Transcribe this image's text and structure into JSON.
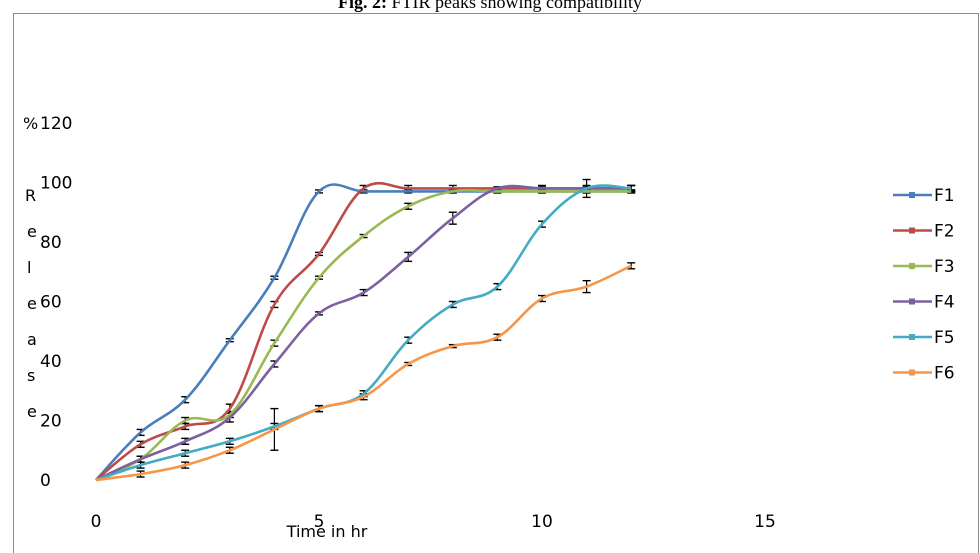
{
  "caption": {
    "prefix": "Fig. 2:",
    "text": " FTIR peaks showing compatibility"
  },
  "chart_data": {
    "type": "line",
    "xlabel": "Time in hr",
    "ylabel_letters": [
      "%",
      "R",
      "e",
      "l",
      "e",
      "a",
      "s",
      "e"
    ],
    "xlim": [
      0,
      15
    ],
    "ylim": [
      0,
      120
    ],
    "xticks": [
      0,
      5,
      10,
      15
    ],
    "yticks": [
      0,
      20,
      40,
      60,
      80,
      100,
      120
    ],
    "grid": false,
    "legend_position": "right",
    "x": [
      0,
      1,
      2,
      3,
      4,
      5,
      6,
      7,
      8,
      9,
      10,
      11,
      12
    ],
    "series": [
      {
        "name": "F1",
        "color": "#4a7ebb",
        "values": [
          0,
          16,
          27,
          47,
          68,
          97,
          97,
          97,
          97,
          97,
          97,
          97,
          97
        ],
        "errors": [
          0,
          1,
          1,
          0.5,
          0.5,
          0.5,
          0.5,
          0.5,
          0.5,
          0.5,
          0.5,
          0.5,
          0.5
        ]
      },
      {
        "name": "F2",
        "color": "#be4b48",
        "values": [
          0,
          12,
          18,
          24,
          59,
          76,
          98,
          98,
          98,
          98,
          98,
          98,
          98
        ],
        "errors": [
          0,
          1,
          1,
          1.5,
          1,
          0.5,
          1,
          1,
          1,
          0.5,
          0.5,
          0.5,
          1
        ]
      },
      {
        "name": "F3",
        "color": "#98b954",
        "values": [
          0,
          7,
          20,
          22,
          46,
          68,
          82,
          92,
          97,
          97,
          97,
          97,
          97
        ],
        "errors": [
          0,
          1,
          1,
          1,
          1,
          0.5,
          0.5,
          1,
          0.5,
          0.5,
          0.5,
          0.5,
          0.5
        ]
      },
      {
        "name": "F4",
        "color": "#7d60a0",
        "values": [
          0,
          7,
          13,
          21,
          39,
          56,
          63,
          75,
          88,
          98,
          98,
          98,
          98
        ],
        "errors": [
          0,
          1,
          1,
          1.5,
          1,
          0.5,
          1,
          1.5,
          2,
          0.5,
          1,
          1,
          1
        ]
      },
      {
        "name": "F5",
        "color": "#46aac5",
        "values": [
          0,
          5,
          9,
          13,
          18,
          24,
          29,
          47,
          59,
          65,
          86,
          98,
          98
        ],
        "errors": [
          0,
          1,
          1,
          1,
          1,
          1,
          1,
          1,
          1,
          1,
          1,
          3,
          1
        ]
      },
      {
        "name": "F6",
        "color": "#f79646",
        "values": [
          0,
          2,
          5,
          10,
          17,
          24,
          28,
          39,
          45,
          48,
          61,
          65,
          72
        ],
        "errors": [
          0,
          1,
          1,
          1,
          7,
          1,
          1,
          0.5,
          0.5,
          1,
          1,
          2,
          1
        ]
      }
    ]
  }
}
